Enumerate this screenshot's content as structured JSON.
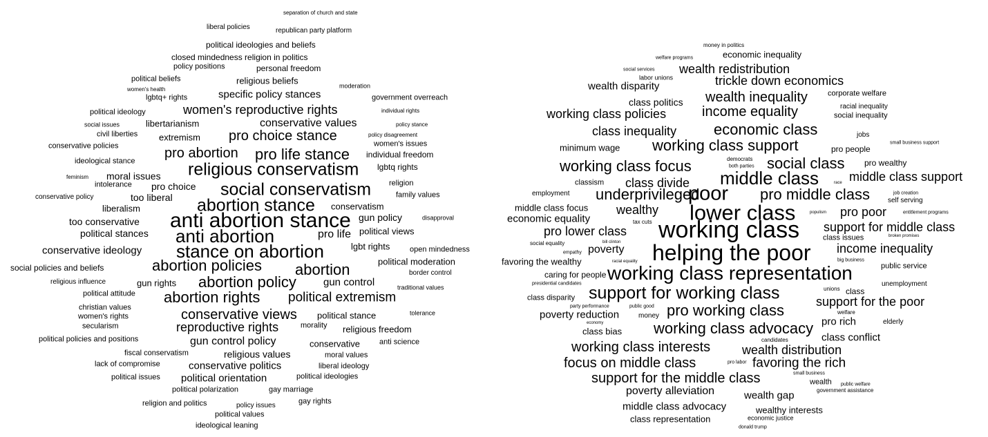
{
  "clouds": [
    {
      "id": "left",
      "words": [
        {
          "text": "separation of church and state",
          "w": 0.6
        },
        {
          "text": "liberal policies",
          "w": 0.7
        },
        {
          "text": "republican party platform",
          "w": 0.7
        },
        {
          "text": "political ideologies and beliefs",
          "w": 0.85
        },
        {
          "text": "closed mindedness religion in politics",
          "w": 0.85
        },
        {
          "text": "policy positions",
          "w": 0.8
        },
        {
          "text": "personal freedom",
          "w": 0.85
        },
        {
          "text": "political beliefs",
          "w": 0.8
        },
        {
          "text": "religious beliefs",
          "w": 0.95
        },
        {
          "text": "women's health",
          "w": 0.6
        },
        {
          "text": "moderation",
          "w": 0.65
        },
        {
          "text": "lgbtq+ rights",
          "w": 0.8
        },
        {
          "text": "specific policy stances",
          "w": 1.1
        },
        {
          "text": "government overreach",
          "w": 0.75
        },
        {
          "text": "political ideology",
          "w": 0.8
        },
        {
          "text": "women's reproductive rights",
          "w": 1.3
        },
        {
          "text": "individual rights",
          "w": 0.6
        },
        {
          "text": "social issues",
          "w": 0.65
        },
        {
          "text": "libertarianism",
          "w": 0.95
        },
        {
          "text": "conservative values",
          "w": 1.15
        },
        {
          "text": "policy stance",
          "w": 0.6
        },
        {
          "text": "civil liberties",
          "w": 0.75
        },
        {
          "text": "extremism",
          "w": 0.95
        },
        {
          "text": "pro choice stance",
          "w": 1.4
        },
        {
          "text": "policy disagreement",
          "w": 0.6
        },
        {
          "text": "conservative policies",
          "w": 0.75
        },
        {
          "text": "women's issues",
          "w": 0.75
        },
        {
          "text": "pro abortion",
          "w": 1.4
        },
        {
          "text": "pro life stance",
          "w": 1.6
        },
        {
          "text": "individual freedom",
          "w": 0.85
        },
        {
          "text": "ideological stance",
          "w": 0.75
        },
        {
          "text": "religious conservatism",
          "w": 1.75
        },
        {
          "text": "lgbtq rights",
          "w": 0.85
        },
        {
          "text": "feminism",
          "w": 0.6
        },
        {
          "text": "moral issues",
          "w": 1.0
        },
        {
          "text": "intolerance",
          "w": 0.75
        },
        {
          "text": "pro choice",
          "w": 1.0
        },
        {
          "text": "social conservatism",
          "w": 1.75
        },
        {
          "text": "religion",
          "w": 0.75
        },
        {
          "text": "conservative policy",
          "w": 0.7
        },
        {
          "text": "too liberal",
          "w": 1.0
        },
        {
          "text": "family values",
          "w": 0.75
        },
        {
          "text": "liberalism",
          "w": 0.95
        },
        {
          "text": "abortion stance",
          "w": 1.75
        },
        {
          "text": "conservatism",
          "w": 0.95
        },
        {
          "text": "too conservative",
          "w": 1.0
        },
        {
          "text": "anti abortion stance",
          "w": 2.15
        },
        {
          "text": "gun policy",
          "w": 1.0
        },
        {
          "text": "disapproval",
          "w": 0.65
        },
        {
          "text": "political stances",
          "w": 1.0
        },
        {
          "text": "political views",
          "w": 0.9
        },
        {
          "text": "pro life",
          "w": 1.15
        },
        {
          "text": "anti abortion",
          "w": 1.85
        },
        {
          "text": "conservative ideology",
          "w": 1.05
        },
        {
          "text": "lgbt rights",
          "w": 0.95
        },
        {
          "text": "open mindedness",
          "w": 0.8
        },
        {
          "text": "stance on abortion",
          "w": 1.85
        },
        {
          "text": "political moderation",
          "w": 0.9
        },
        {
          "text": "social policies and beliefs",
          "w": 0.85
        },
        {
          "text": "abortion policies",
          "w": 1.6
        },
        {
          "text": "abortion",
          "w": 1.6
        },
        {
          "text": "border control",
          "w": 0.7
        },
        {
          "text": "religious influence",
          "w": 0.7
        },
        {
          "text": "gun rights",
          "w": 0.9
        },
        {
          "text": "abortion policy",
          "w": 1.6
        },
        {
          "text": "gun control",
          "w": 1.05
        },
        {
          "text": "traditional values",
          "w": 0.65
        },
        {
          "text": "political attitude",
          "w": 0.8
        },
        {
          "text": "abortion rights",
          "w": 1.6
        },
        {
          "text": "political extremism",
          "w": 1.35
        },
        {
          "text": "christian values",
          "w": 0.8
        },
        {
          "text": "women's rights",
          "w": 0.8
        },
        {
          "text": "conservative views",
          "w": 1.4
        },
        {
          "text": "political stance",
          "w": 0.9
        },
        {
          "text": "tolerance",
          "w": 0.65
        },
        {
          "text": "secularism",
          "w": 0.75
        },
        {
          "text": "reproductive rights",
          "w": 1.3
        },
        {
          "text": "morality",
          "w": 0.75
        },
        {
          "text": "religious freedom",
          "w": 0.95
        },
        {
          "text": "political policies and positions",
          "w": 0.8
        },
        {
          "text": "gun control policy",
          "w": 1.15
        },
        {
          "text": "conservative",
          "w": 0.95
        },
        {
          "text": "anti science",
          "w": 0.75
        },
        {
          "text": "fiscal conservatism",
          "w": 0.8
        },
        {
          "text": "religious values",
          "w": 1.0
        },
        {
          "text": "moral values",
          "w": 0.75
        },
        {
          "text": "lack of compromise",
          "w": 0.75
        },
        {
          "text": "conservative politics",
          "w": 1.05
        },
        {
          "text": "liberal ideology",
          "w": 0.75
        },
        {
          "text": "political issues",
          "w": 0.75
        },
        {
          "text": "political orientation",
          "w": 1.05
        },
        {
          "text": "political ideologies",
          "w": 0.75
        },
        {
          "text": "political polarization",
          "w": 0.75
        },
        {
          "text": "gay marriage",
          "w": 0.75
        },
        {
          "text": "religion and politics",
          "w": 0.75
        },
        {
          "text": "policy issues",
          "w": 0.7
        },
        {
          "text": "gay rights",
          "w": 0.75
        },
        {
          "text": "political values",
          "w": 0.8
        },
        {
          "text": "ideological leaning",
          "w": 0.8
        }
      ]
    },
    {
      "id": "right",
      "words": [
        {
          "text": "money in politics",
          "w": 0.6
        },
        {
          "text": "welfare programs",
          "w": 0.5
        },
        {
          "text": "economic inequality",
          "w": 0.95
        },
        {
          "text": "social services",
          "w": 0.5
        },
        {
          "text": "wealth redistribution",
          "w": 1.25
        },
        {
          "text": "labor unions",
          "w": 0.65
        },
        {
          "text": "trickle down economics",
          "w": 1.3
        },
        {
          "text": "wealth disparity",
          "w": 1.1
        },
        {
          "text": "corporate welfare",
          "w": 0.75
        },
        {
          "text": "wealth inequality",
          "w": 1.4
        },
        {
          "text": "class politics",
          "w": 1.0
        },
        {
          "text": "racial inequality",
          "w": 0.7
        },
        {
          "text": "working class policies",
          "w": 1.25
        },
        {
          "text": "income equality",
          "w": 1.4
        },
        {
          "text": "social inequality",
          "w": 0.8
        },
        {
          "text": "class inequality",
          "w": 1.3
        },
        {
          "text": "economic class",
          "w": 1.55
        },
        {
          "text": "jobs",
          "w": 0.7
        },
        {
          "text": "minimum wage",
          "w": 0.95
        },
        {
          "text": "working class support",
          "w": 1.55
        },
        {
          "text": "small business support",
          "w": 0.5
        },
        {
          "text": "pro people",
          "w": 0.85
        },
        {
          "text": "democrats",
          "w": 0.55
        },
        {
          "text": "both parties",
          "w": 0.5
        },
        {
          "text": "working class focus",
          "w": 1.55
        },
        {
          "text": "social class",
          "w": 1.55
        },
        {
          "text": "pro wealthy",
          "w": 0.85
        },
        {
          "text": "classism",
          "w": 0.75
        },
        {
          "text": "class divide",
          "w": 1.3
        },
        {
          "text": "middle class",
          "w": 1.85
        },
        {
          "text": "race",
          "w": 0.45
        },
        {
          "text": "middle class support",
          "w": 1.25
        },
        {
          "text": "employment",
          "w": 0.7
        },
        {
          "text": "underprivileged",
          "w": 1.55
        },
        {
          "text": "poor",
          "w": 2.05
        },
        {
          "text": "pro middle class",
          "w": 1.55
        },
        {
          "text": "job creation",
          "w": 0.5
        },
        {
          "text": "self serving",
          "w": 0.7
        },
        {
          "text": "middle class focus",
          "w": 0.9
        },
        {
          "text": "wealthy",
          "w": 1.3
        },
        {
          "text": "lower class",
          "w": 2.2
        },
        {
          "text": "populism",
          "w": 0.45
        },
        {
          "text": "pro poor",
          "w": 1.25
        },
        {
          "text": "entitlement programs",
          "w": 0.5
        },
        {
          "text": "economic equality",
          "w": 1.1
        },
        {
          "text": "tax cuts",
          "w": 0.55
        },
        {
          "text": "support for middle class",
          "w": 1.3
        },
        {
          "text": "pro lower class",
          "w": 1.3
        },
        {
          "text": "working class",
          "w": 2.4
        },
        {
          "text": "class issues",
          "w": 0.8
        },
        {
          "text": "broken promises",
          "w": 0.45
        },
        {
          "text": "bill clinton",
          "w": 0.45
        },
        {
          "text": "social equality",
          "w": 0.55
        },
        {
          "text": "poverty",
          "w": 1.15
        },
        {
          "text": "income inequality",
          "w": 1.3
        },
        {
          "text": "empathy",
          "w": 0.5
        },
        {
          "text": "helping the poor",
          "w": 2.3
        },
        {
          "text": "favoring the wealthy",
          "w": 0.95
        },
        {
          "text": "racial equality",
          "w": 0.45
        },
        {
          "text": "big business",
          "w": 0.5
        },
        {
          "text": "caring for people",
          "w": 0.85
        },
        {
          "text": "working class representation",
          "w": 2.0
        },
        {
          "text": "public service",
          "w": 0.75
        },
        {
          "text": "presidential candidates",
          "w": 0.5
        },
        {
          "text": "unemployment",
          "w": 0.7
        },
        {
          "text": "unions",
          "w": 0.55
        },
        {
          "text": "class",
          "w": 0.85
        },
        {
          "text": "class disparity",
          "w": 0.75
        },
        {
          "text": "support for working class",
          "w": 1.75
        },
        {
          "text": "support for the poor",
          "w": 1.3
        },
        {
          "text": "party performance",
          "w": 0.5
        },
        {
          "text": "public good",
          "w": 0.5
        },
        {
          "text": "pro working class",
          "w": 1.6
        },
        {
          "text": "welfare",
          "w": 0.6
        },
        {
          "text": "poverty reduction",
          "w": 1.1
        },
        {
          "text": "money",
          "w": 0.7
        },
        {
          "text": "pro rich",
          "w": 1.05
        },
        {
          "text": "economy",
          "w": 0.45
        },
        {
          "text": "elderly",
          "w": 0.7
        },
        {
          "text": "class bias",
          "w": 0.9
        },
        {
          "text": "working class advocacy",
          "w": 1.6
        },
        {
          "text": "class conflict",
          "w": 1.05
        },
        {
          "text": "candidates",
          "w": 0.55
        },
        {
          "text": "working class interests",
          "w": 1.4
        },
        {
          "text": "wealth distribution",
          "w": 1.3
        },
        {
          "text": "focus on middle class",
          "w": 1.4
        },
        {
          "text": "pro labor",
          "w": 0.5
        },
        {
          "text": "favoring the rich",
          "w": 1.35
        },
        {
          "text": "small business",
          "w": 0.5
        },
        {
          "text": "support for the middle class",
          "w": 1.4
        },
        {
          "text": "wealth",
          "w": 0.8
        },
        {
          "text": "public welfare",
          "w": 0.5
        },
        {
          "text": "poverty alleviation",
          "w": 1.15
        },
        {
          "text": "government assistance",
          "w": 0.6
        },
        {
          "text": "wealth gap",
          "w": 1.1
        },
        {
          "text": "middle class advocacy",
          "w": 1.1
        },
        {
          "text": "wealthy interests",
          "w": 0.9
        },
        {
          "text": "class representation",
          "w": 0.95
        },
        {
          "text": "economic justice",
          "w": 0.65
        },
        {
          "text": "donald trump",
          "w": 0.5
        }
      ]
    }
  ]
}
